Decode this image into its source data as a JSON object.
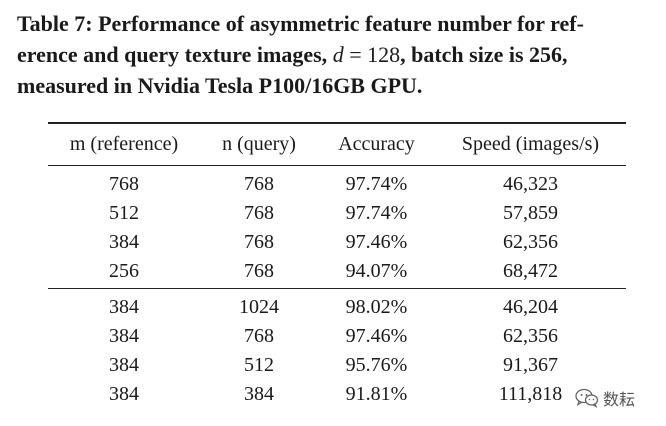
{
  "caption": {
    "line1_bold": "Table 7: Performance of asymmetric feature number for ref-",
    "line2_bold_a": "erence and query texture images, ",
    "line2_var": "d",
    "line2_normal": " = 128",
    "line2_bold_b": ", batch size is 256,",
    "line3_bold": "measured in Nvidia Tesla P100/16GB GPU."
  },
  "table": {
    "headers": [
      "m (reference)",
      "n (query)",
      "Accuracy",
      "Speed (images/s)"
    ],
    "groups": [
      [
        [
          "768",
          "768",
          "97.74%",
          "46,323"
        ],
        [
          "512",
          "768",
          "97.74%",
          "57,859"
        ],
        [
          "384",
          "768",
          "97.46%",
          "62,356"
        ],
        [
          "256",
          "768",
          "94.07%",
          "68,472"
        ]
      ],
      [
        [
          "384",
          "1024",
          "98.02%",
          "46,204"
        ],
        [
          "384",
          "768",
          "97.46%",
          "62,356"
        ],
        [
          "384",
          "512",
          "95.76%",
          "91,367"
        ],
        [
          "384",
          "384",
          "91.81%",
          "111,818"
        ]
      ]
    ]
  },
  "watermark": {
    "icon": "wechat-icon",
    "text": "数耘"
  }
}
